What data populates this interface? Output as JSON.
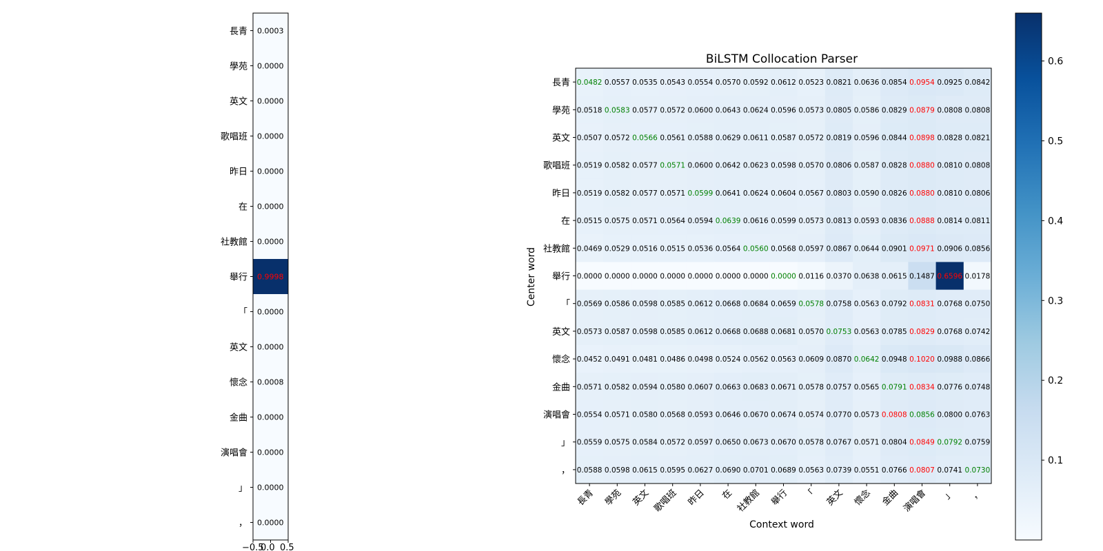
{
  "chart_data": [
    {
      "type": "heatmap",
      "name": "word-score-column",
      "rows": [
        "長青",
        "學苑",
        "英文",
        "歌唱班",
        "昨日",
        "在",
        "社教館",
        "舉行",
        "「",
        "英文",
        "懷念",
        "金曲",
        "演唱會",
        "」",
        "，"
      ],
      "values": [
        0.0003,
        0.0,
        0.0,
        0.0,
        0.0,
        0.0,
        0.0,
        0.9998,
        0.0,
        0.0,
        0.0008,
        0.0,
        0.0,
        0.0,
        0.0
      ],
      "value_labels": [
        "0.0003",
        "0.0000",
        "0.0000",
        "0.0000",
        "0.0000",
        "0.0000",
        "0.0000",
        "0.9998",
        "0.0000",
        "0.0000",
        "0.0008",
        "0.0000",
        "0.0000",
        "0.0000",
        "0.0000"
      ],
      "highlight_row": 7,
      "x_tick_labels": [
        "−0.5",
        "0.0",
        "0.5"
      ],
      "colormap": "Blues",
      "vmin": 0,
      "vmax": 1
    },
    {
      "type": "heatmap",
      "name": "collocation-matrix",
      "title": "BiLSTM Collocation Parser",
      "xlabel": "Context word",
      "ylabel": "Center word",
      "rows": [
        "長青",
        "學苑",
        "英文",
        "歌唱班",
        "昨日",
        "在",
        "社教館",
        "舉行",
        "「",
        "英文",
        "懷念",
        "金曲",
        "演唱會",
        "」",
        "，"
      ],
      "cols": [
        "長青",
        "學苑",
        "英文",
        "歌唱班",
        "昨日",
        "在",
        "社教館",
        "舉行",
        "「",
        "英文",
        "懷念",
        "金曲",
        "演唱會",
        "」",
        "，"
      ],
      "matrix": [
        [
          "0.0482",
          "0.0557",
          "0.0535",
          "0.0543",
          "0.0554",
          "0.0570",
          "0.0592",
          "0.0612",
          "0.0523",
          "0.0821",
          "0.0636",
          "0.0854",
          "0.0954",
          "0.0925",
          "0.0842"
        ],
        [
          "0.0518",
          "0.0583",
          "0.0577",
          "0.0572",
          "0.0600",
          "0.0643",
          "0.0624",
          "0.0596",
          "0.0573",
          "0.0805",
          "0.0586",
          "0.0829",
          "0.0879",
          "0.0808",
          "0.0808"
        ],
        [
          "0.0507",
          "0.0572",
          "0.0566",
          "0.0561",
          "0.0588",
          "0.0629",
          "0.0611",
          "0.0587",
          "0.0572",
          "0.0819",
          "0.0596",
          "0.0844",
          "0.0898",
          "0.0828",
          "0.0821"
        ],
        [
          "0.0519",
          "0.0582",
          "0.0577",
          "0.0571",
          "0.0600",
          "0.0642",
          "0.0623",
          "0.0598",
          "0.0570",
          "0.0806",
          "0.0587",
          "0.0828",
          "0.0880",
          "0.0810",
          "0.0808"
        ],
        [
          "0.0519",
          "0.0582",
          "0.0577",
          "0.0571",
          "0.0599",
          "0.0641",
          "0.0624",
          "0.0604",
          "0.0567",
          "0.0803",
          "0.0590",
          "0.0826",
          "0.0880",
          "0.0810",
          "0.0806"
        ],
        [
          "0.0515",
          "0.0575",
          "0.0571",
          "0.0564",
          "0.0594",
          "0.0639",
          "0.0616",
          "0.0599",
          "0.0573",
          "0.0813",
          "0.0593",
          "0.0836",
          "0.0888",
          "0.0814",
          "0.0811"
        ],
        [
          "0.0469",
          "0.0529",
          "0.0516",
          "0.0515",
          "0.0536",
          "0.0564",
          "0.0560",
          "0.0568",
          "0.0597",
          "0.0867",
          "0.0644",
          "0.0901",
          "0.0971",
          "0.0906",
          "0.0856"
        ],
        [
          "0.0000",
          "0.0000",
          "0.0000",
          "0.0000",
          "0.0000",
          "0.0000",
          "0.0000",
          "0.0000",
          "0.0116",
          "0.0370",
          "0.0638",
          "0.0615",
          "0.1487",
          "0.6596",
          "0.0178"
        ],
        [
          "0.0569",
          "0.0586",
          "0.0598",
          "0.0585",
          "0.0612",
          "0.0668",
          "0.0684",
          "0.0659",
          "0.0578",
          "0.0758",
          "0.0563",
          "0.0792",
          "0.0831",
          "0.0768",
          "0.0750"
        ],
        [
          "0.0573",
          "0.0587",
          "0.0598",
          "0.0585",
          "0.0612",
          "0.0668",
          "0.0688",
          "0.0681",
          "0.0570",
          "0.0753",
          "0.0563",
          "0.0785",
          "0.0829",
          "0.0768",
          "0.0742"
        ],
        [
          "0.0452",
          "0.0491",
          "0.0481",
          "0.0486",
          "0.0498",
          "0.0524",
          "0.0562",
          "0.0563",
          "0.0609",
          "0.0870",
          "0.0642",
          "0.0948",
          "0.1020",
          "0.0988",
          "0.0866"
        ],
        [
          "0.0571",
          "0.0582",
          "0.0594",
          "0.0580",
          "0.0607",
          "0.0663",
          "0.0683",
          "0.0671",
          "0.0578",
          "0.0757",
          "0.0565",
          "0.0791",
          "0.0834",
          "0.0776",
          "0.0748"
        ],
        [
          "0.0554",
          "0.0571",
          "0.0580",
          "0.0568",
          "0.0593",
          "0.0646",
          "0.0670",
          "0.0674",
          "0.0574",
          "0.0770",
          "0.0573",
          "0.0808",
          "0.0856",
          "0.0800",
          "0.0763"
        ],
        [
          "0.0559",
          "0.0575",
          "0.0584",
          "0.0572",
          "0.0597",
          "0.0650",
          "0.0673",
          "0.0670",
          "0.0578",
          "0.0767",
          "0.0571",
          "0.0804",
          "0.0849",
          "0.0792",
          "0.0759"
        ],
        [
          "0.0588",
          "0.0598",
          "0.0615",
          "0.0595",
          "0.0627",
          "0.0690",
          "0.0701",
          "0.0689",
          "0.0563",
          "0.0739",
          "0.0551",
          "0.0766",
          "0.0807",
          "0.0741",
          "0.0730"
        ]
      ],
      "green_cells": [
        [
          0,
          0
        ],
        [
          1,
          1
        ],
        [
          2,
          2
        ],
        [
          3,
          3
        ],
        [
          4,
          4
        ],
        [
          5,
          5
        ],
        [
          6,
          6
        ],
        [
          7,
          7
        ],
        [
          8,
          8
        ],
        [
          9,
          9
        ],
        [
          10,
          10
        ],
        [
          11,
          11
        ],
        [
          12,
          12
        ],
        [
          13,
          13
        ],
        [
          14,
          14
        ]
      ],
      "red_cells": [
        [
          0,
          12
        ],
        [
          1,
          12
        ],
        [
          2,
          12
        ],
        [
          3,
          12
        ],
        [
          4,
          12
        ],
        [
          5,
          12
        ],
        [
          6,
          12
        ],
        [
          7,
          13
        ],
        [
          8,
          12
        ],
        [
          9,
          12
        ],
        [
          10,
          12
        ],
        [
          11,
          12
        ],
        [
          12,
          11
        ],
        [
          13,
          12
        ],
        [
          14,
          12
        ]
      ],
      "colormap": "Blues",
      "colorbar": {
        "ticks": [
          0.1,
          0.2,
          0.3,
          0.4,
          0.5,
          0.6
        ],
        "tick_labels": [
          "0.1",
          "0.2",
          "0.3",
          "0.4",
          "0.5",
          "0.6"
        ],
        "range": [
          0.0,
          0.66
        ]
      },
      "grid": false
    }
  ],
  "colors": {
    "text": "#000000",
    "green_text": "#008000",
    "red_text": "#ff0000",
    "axis": "#000000"
  }
}
